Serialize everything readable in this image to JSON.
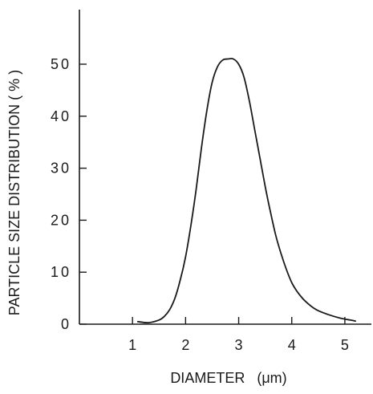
{
  "chart_data": {
    "type": "line",
    "title": "",
    "xlabel": "DIAMETER   (μm)",
    "ylabel": "PARTICLE SIZE DISTRIBUTION ( % )",
    "xlim": [
      0,
      5.5
    ],
    "ylim": [
      0,
      60
    ],
    "x_ticks": [
      1,
      2,
      3,
      4,
      5
    ],
    "y_ticks": [
      0,
      10,
      20,
      30,
      40,
      50
    ],
    "x_tick_labels": [
      "1",
      "2",
      "3",
      "4",
      "5"
    ],
    "y_tick_labels": [
      "0",
      "10",
      "20",
      "30",
      "40",
      "50"
    ],
    "grid": false,
    "series": [
      {
        "x": [
          1.1,
          1.3,
          1.5,
          1.6,
          1.7,
          1.8,
          1.9,
          2.0,
          2.1,
          2.2,
          2.3,
          2.4,
          2.5,
          2.6,
          2.7,
          2.8,
          2.9,
          3.0,
          3.1,
          3.2,
          3.3,
          3.4,
          3.5,
          3.6,
          3.7,
          3.8,
          3.9,
          4.0,
          4.1,
          4.2,
          4.3,
          4.4,
          4.5,
          4.7,
          4.9,
          5.1,
          5.2
        ],
        "y": [
          0.5,
          0.3,
          0.8,
          1.5,
          2.8,
          5.0,
          8.5,
          13.0,
          19.0,
          26.0,
          34.0,
          41.0,
          46.5,
          49.5,
          50.8,
          51.0,
          51.0,
          50.0,
          47.5,
          43.0,
          37.5,
          32.0,
          26.5,
          21.5,
          17.0,
          13.5,
          10.5,
          8.0,
          6.3,
          5.0,
          4.0,
          3.2,
          2.6,
          1.8,
          1.2,
          0.8,
          0.6
        ]
      }
    ]
  }
}
